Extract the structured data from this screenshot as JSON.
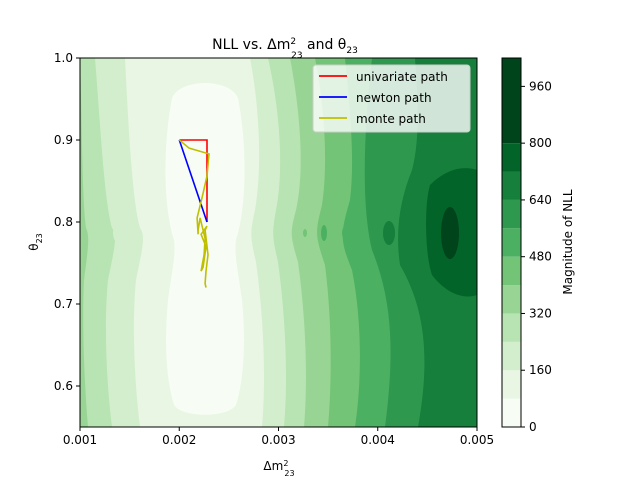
{
  "chart_data": {
    "type": "contour",
    "title": "NLL vs. Δm²₂₃ and θ₂₃",
    "xlabel": "Δm²₂₃",
    "ylabel": "θ₂₃",
    "xlim": [
      0.001,
      0.005
    ],
    "ylim": [
      0.55,
      1.0
    ],
    "x_ticks": [
      0.001,
      0.002,
      0.003,
      0.004,
      0.005
    ],
    "x_tick_labels": [
      "0.001",
      "0.002",
      "0.003",
      "0.004",
      "0.005"
    ],
    "y_ticks": [
      0.6,
      0.7,
      0.8,
      0.9,
      1.0
    ],
    "y_tick_labels": [
      "0.6",
      "0.7",
      "0.8",
      "0.9",
      "1.0"
    ],
    "colorbar": {
      "label": "Magnitude of NLL",
      "levels": [
        0,
        80,
        160,
        240,
        320,
        400,
        480,
        560,
        640,
        720,
        800,
        880,
        960,
        1040
      ],
      "ticks": [
        0,
        160,
        320,
        480,
        640,
        800,
        960
      ],
      "tick_labels": [
        "0",
        "160",
        "320",
        "480",
        "640",
        "800",
        "960"
      ],
      "colors": [
        "#f7fcf5",
        "#e8f6e3",
        "#d3eecd",
        "#b8e3b2",
        "#98d594",
        "#73c476",
        "#4bb062",
        "#2f984f",
        "#157f3b",
        "#036429",
        "#00441b"
      ]
    },
    "legend": {
      "placement": "upper right"
    },
    "series": [
      {
        "name": "univariate path",
        "color": "#ff0000",
        "x": [
          0.002,
          0.00228,
          0.00228,
          0.00228
        ],
        "y": [
          0.9,
          0.9,
          0.8,
          0.8
        ]
      },
      {
        "name": "newton path",
        "color": "#0000ff",
        "x": [
          0.002,
          0.00228
        ],
        "y": [
          0.9,
          0.8
        ]
      },
      {
        "name": "monte path",
        "color": "#bfbf00",
        "x": [
          0.002,
          0.0021,
          0.0023,
          0.00229,
          0.00228,
          0.00223,
          0.00218,
          0.00219,
          0.00219,
          0.00221,
          0.00226,
          0.00225,
          0.00222,
          0.00224,
          0.00227,
          0.00222,
          0.00228,
          0.00226,
          0.00229,
          0.00227,
          0.00226,
          0.00227
        ],
        "y": [
          0.9,
          0.89,
          0.883,
          0.87,
          0.856,
          0.83,
          0.805,
          0.785,
          0.79,
          0.805,
          0.78,
          0.76,
          0.74,
          0.745,
          0.77,
          0.785,
          0.795,
          0.79,
          0.76,
          0.74,
          0.725,
          0.72
        ]
      }
    ]
  }
}
